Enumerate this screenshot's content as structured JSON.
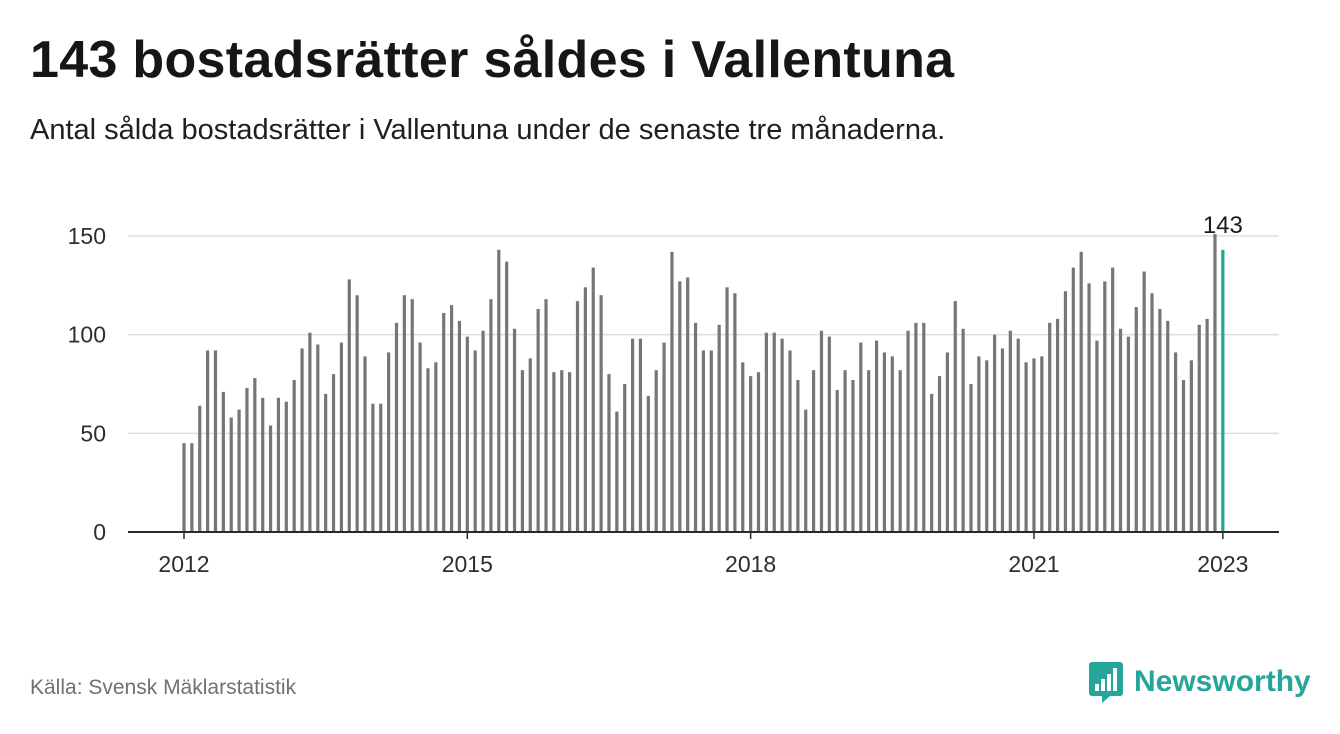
{
  "title": "143 bostadsrätter såldes i Vallentuna",
  "subtitle": "Antal sålda bostadsrätter i Vallentuna under de senaste tre månaderna.",
  "source": "Källa: Svensk Mäklarstatistik",
  "brand": {
    "name": "Newsworthy",
    "icon": "newsworthy-chart-icon",
    "color": "#26a69a"
  },
  "colors": {
    "bar": "#75757a",
    "highlight": "#1fa796",
    "grid": "#dedede",
    "axis": "#2a2a2a"
  },
  "chart_data": {
    "type": "bar",
    "x_unit": "month",
    "x_start": "2012-01",
    "x_tick_labels": [
      "2012",
      "2015",
      "2018",
      "2021",
      "2023"
    ],
    "y_tick_labels": [
      "0",
      "50",
      "100",
      "150"
    ],
    "ylim": [
      0,
      160
    ],
    "grid": true,
    "highlight_label": "143",
    "values": [
      45,
      45,
      64,
      92,
      92,
      71,
      58,
      62,
      73,
      78,
      68,
      54,
      68,
      66,
      77,
      93,
      101,
      95,
      70,
      80,
      96,
      128,
      120,
      89,
      65,
      65,
      91,
      106,
      120,
      118,
      96,
      83,
      86,
      111,
      115,
      107,
      99,
      92,
      102,
      118,
      143,
      137,
      103,
      82,
      88,
      113,
      118,
      81,
      82,
      81,
      117,
      124,
      134,
      120,
      80,
      61,
      75,
      98,
      98,
      69,
      82,
      96,
      142,
      127,
      129,
      106,
      92,
      92,
      105,
      124,
      121,
      86,
      79,
      81,
      101,
      101,
      98,
      92,
      77,
      62,
      82,
      102,
      99,
      72,
      82,
      77,
      96,
      82,
      97,
      91,
      89,
      82,
      102,
      106,
      106,
      70,
      79,
      91,
      117,
      103,
      75,
      89,
      87,
      100,
      93,
      102,
      98,
      86,
      88,
      89,
      106,
      108,
      122,
      134,
      142,
      126,
      97,
      127,
      134,
      103,
      99,
      114,
      132,
      121,
      113,
      107,
      91,
      77,
      87,
      105,
      108,
      151,
      143
    ]
  }
}
